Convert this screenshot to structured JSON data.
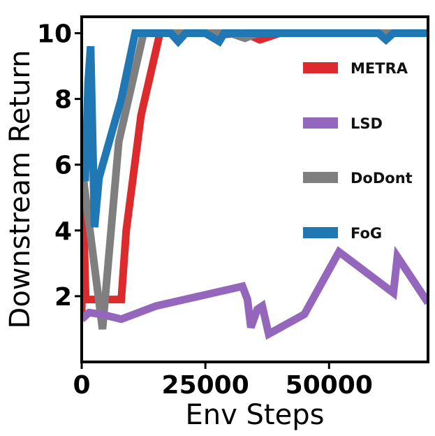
{
  "chart_data": {
    "type": "line",
    "title": "",
    "xlabel": "Env Steps",
    "ylabel": "Downstream Return",
    "xlim": [
      0,
      70000
    ],
    "ylim": [
      0,
      10.5
    ],
    "xticks": [
      0,
      25000,
      50000
    ],
    "yticks": [
      2,
      4,
      6,
      8,
      10
    ],
    "grid": false,
    "legend_position": "right",
    "series": [
      {
        "name": "METRA",
        "color": "#dc2a2d",
        "x": [
          0,
          300,
          800,
          8000,
          9000,
          12000,
          15800,
          25000,
          27000,
          33000,
          36000,
          40000,
          50000,
          60000,
          70000
        ],
        "y": [
          1.5,
          4.9,
          1.9,
          1.9,
          4.0,
          7.5,
          10.0,
          10.0,
          9.95,
          10.0,
          9.8,
          10.0,
          10.0,
          10.0,
          10.0
        ]
      },
      {
        "name": "LSD",
        "color": "#9467bd",
        "x": [
          0,
          1500,
          4000,
          8000,
          15000,
          32500,
          33500,
          34200,
          35500,
          36500,
          37800,
          45000,
          52000,
          63000,
          63800,
          70000
        ],
        "y": [
          1.3,
          1.5,
          1.45,
          1.3,
          1.7,
          2.3,
          1.9,
          1.05,
          1.6,
          1.7,
          0.85,
          1.45,
          3.35,
          2.1,
          3.2,
          1.8
        ]
      },
      {
        "name": "DoDont",
        "color": "#7f7f7f",
        "x": [
          0,
          400,
          4200,
          7500,
          12500,
          20000,
          30000,
          33000,
          35500,
          40000,
          50000,
          60000,
          70000
        ],
        "y": [
          6.1,
          5.5,
          1.0,
          6.7,
          10.0,
          10.0,
          10.0,
          9.85,
          10.0,
          10.0,
          10.0,
          10.0,
          10.0
        ]
      },
      {
        "name": "FoG",
        "color": "#1f77b4",
        "x": [
          0,
          700,
          1300,
          1800,
          2600,
          3500,
          8000,
          10800,
          18000,
          19500,
          21000,
          25000,
          27800,
          28800,
          30000,
          40000,
          60000,
          61500,
          63000,
          70000
        ],
        "y": [
          6.5,
          5.5,
          8.5,
          9.6,
          4.1,
          5.6,
          8.0,
          10.0,
          10.0,
          9.75,
          10.0,
          10.0,
          9.75,
          10.0,
          10.0,
          10.0,
          10.0,
          9.8,
          10.0,
          10.0
        ]
      }
    ],
    "legend_order": [
      "METRA",
      "LSD",
      "DoDont",
      "FoG"
    ]
  }
}
